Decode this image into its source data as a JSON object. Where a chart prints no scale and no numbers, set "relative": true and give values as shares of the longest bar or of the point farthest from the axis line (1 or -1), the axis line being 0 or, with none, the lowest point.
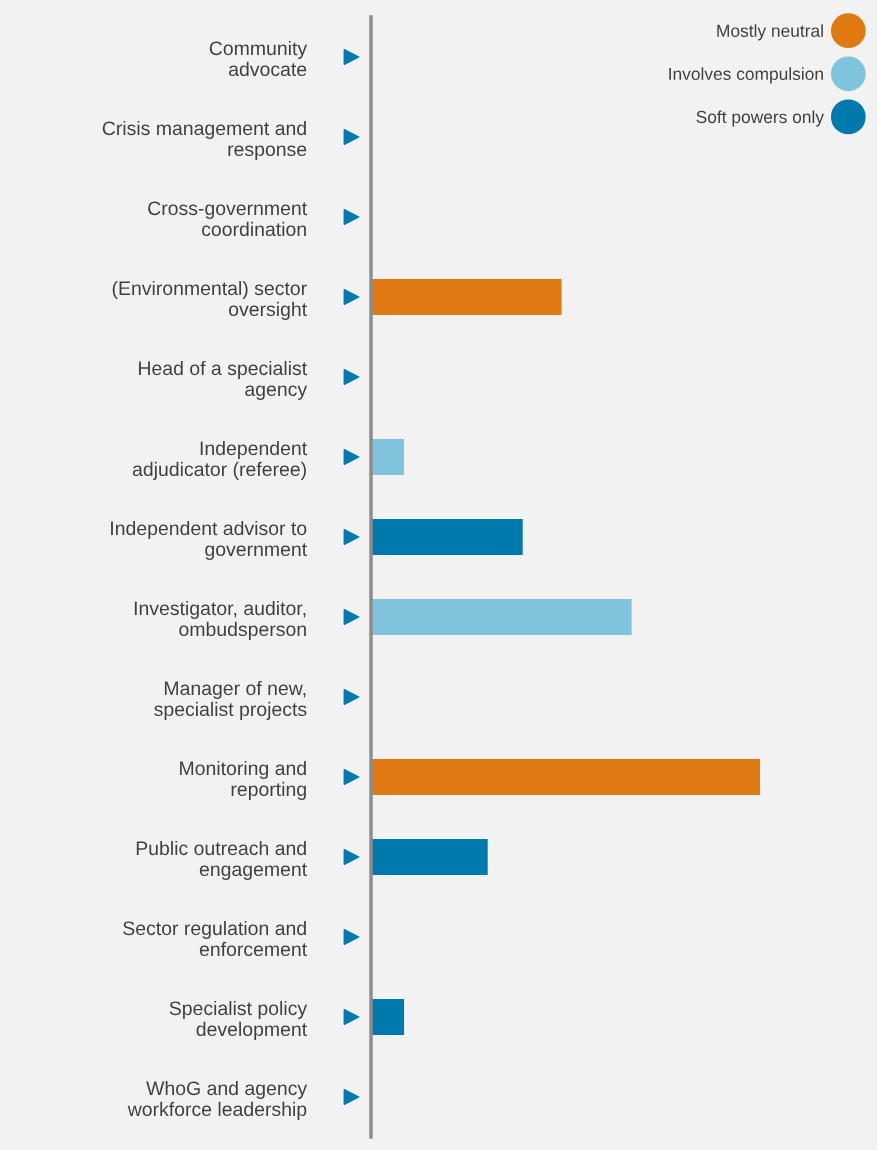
{
  "chart_data": {
    "type": "bar",
    "orientation": "horizontal",
    "relative": true,
    "legend": "top right",
    "marker": "circle",
    "grid": false,
    "categories": [
      "Community\nadvocate",
      "Crisis management and\nresponse",
      "Cross-government\ncoordination",
      "(Environmental) sector\noversight",
      "Head of a specialist\nagency",
      "Independent\nadjudicator (referee)",
      "Independent advisor to\ngovernment",
      "Investigator, auditor,\nombudsperson",
      "Manager of new,\nspecialist projects",
      "Monitoring and\nreporting",
      "Public outreach and\nengagement",
      "Sector regulation and\nenforcement",
      "Specialist policy\ndevelopment",
      "WhoG and agency\nworkforce leadership"
    ],
    "series": [
      {
        "name": "Mostly neutral",
        "color": "#df7a12",
        "values": [
          null,
          null,
          null,
          0.49,
          null,
          null,
          null,
          null,
          null,
          1,
          null,
          null,
          null,
          null
        ]
      },
      {
        "name": "Involves compulsion",
        "color": "#7fc3dc",
        "values": [
          null,
          null,
          null,
          null,
          null,
          0.085,
          null,
          0.67,
          null,
          null,
          null,
          null,
          null,
          null
        ]
      },
      {
        "name": "Soft powers only",
        "color": "#0079ad",
        "values": [
          null,
          null,
          null,
          null,
          null,
          null,
          0.39,
          null,
          null,
          null,
          0.3,
          null,
          0.085,
          null
        ]
      }
    ]
  }
}
